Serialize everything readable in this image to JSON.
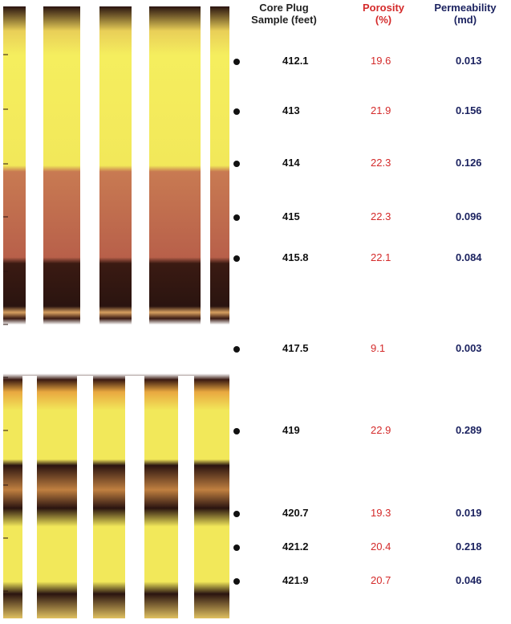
{
  "headers": {
    "sample_line1": "Core Plug",
    "sample_line2": "Sample (feet)",
    "porosity_line1": "Porosity",
    "porosity_line2": "(%)",
    "permeability_line1": "Permeability",
    "permeability_line2": "(md)"
  },
  "samples": [
    {
      "depth": "412.1",
      "porosity": "19.6",
      "permeability": "0.013"
    },
    {
      "depth": "413",
      "porosity": "21.9",
      "permeability": "0.156"
    },
    {
      "depth": "414",
      "porosity": "22.3",
      "permeability": "0.126"
    },
    {
      "depth": "415",
      "porosity": "22.3",
      "permeability": "0.096"
    },
    {
      "depth": "415.8",
      "porosity": "22.1",
      "permeability": "0.084"
    },
    {
      "depth": "417.5",
      "porosity": "9.1",
      "permeability": "0.003"
    },
    {
      "depth": "419",
      "porosity": "22.9",
      "permeability": "0.289"
    },
    {
      "depth": "420.7",
      "porosity": "19.3",
      "permeability": "0.019"
    },
    {
      "depth": "421.2",
      "porosity": "20.4",
      "permeability": "0.218"
    },
    {
      "depth": "421.9",
      "porosity": "20.7",
      "permeability": "0.046"
    }
  ],
  "colors": {
    "porosity": "#d42a2a",
    "permeability": "#1c2360",
    "core_yellow": "#f2e85a",
    "core_brown": "#b8604a",
    "core_dark": "#2a1410"
  }
}
